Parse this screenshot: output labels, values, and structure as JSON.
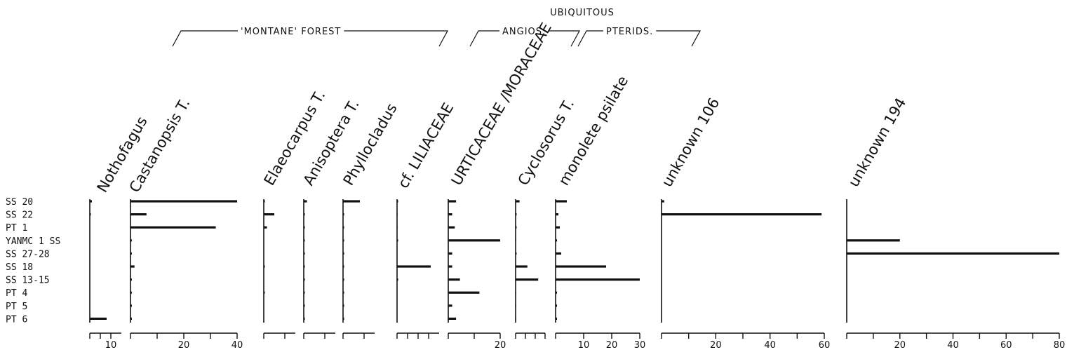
{
  "chart_data": {
    "type": "bar",
    "orientation": "horizontal",
    "samples": [
      "SS 20",
      "SS 22",
      "PT 1",
      "YANMC 1 SS",
      "SS 27-28",
      "SS 18",
      "SS 13-15",
      "PT 4",
      "PT 5",
      "PT 6"
    ],
    "groups": [
      {
        "label": "'MONTANE' FOREST"
      },
      {
        "label": "ANGIOS."
      },
      {
        "label": "PTERIDS."
      },
      {
        "label": "UBIQUITOUS"
      }
    ],
    "series": [
      {
        "name": "Nothofagus",
        "axis": {
          "min": 0,
          "max": 15,
          "ticks": [
            0,
            5,
            10
          ],
          "tick_labels": [
            "",
            "",
            "10"
          ]
        },
        "values": [
          1,
          0.5,
          0,
          0,
          0,
          0,
          0,
          0,
          0,
          8
        ]
      },
      {
        "name": "Castanopsis T.",
        "axis": {
          "min": 0,
          "max": 40,
          "ticks": [
            0,
            10,
            20,
            30,
            40
          ],
          "tick_labels": [
            "",
            "",
            "20",
            "",
            "40"
          ]
        },
        "values": [
          40,
          6,
          32,
          0.5,
          0.5,
          1.5,
          0.5,
          0.5,
          0.5,
          0.5
        ]
      },
      {
        "name": "Elaeocarpus T.",
        "axis": {
          "min": 0,
          "max": 15,
          "ticks": [
            0,
            10
          ],
          "tick_labels": [
            "",
            ""
          ]
        },
        "values": [
          0.5,
          5,
          1.5,
          0,
          0,
          0.5,
          0,
          0.5,
          0,
          0
        ]
      },
      {
        "name": "Anisoptera T.",
        "axis": {
          "min": 0,
          "max": 15,
          "ticks": [
            0,
            10
          ],
          "tick_labels": [
            "",
            ""
          ]
        },
        "values": [
          1.5,
          0.5,
          0.5,
          0.5,
          0.5,
          0.5,
          0.5,
          0.5,
          0.5,
          0.5
        ]
      },
      {
        "name": "Phyllocladus",
        "axis": {
          "min": 0,
          "max": 15,
          "ticks": [
            0,
            10
          ],
          "tick_labels": [
            "",
            ""
          ]
        },
        "values": [
          8,
          0.5,
          0.5,
          0.5,
          0.5,
          0.5,
          0.5,
          0.5,
          0.5,
          0.5
        ]
      },
      {
        "name": "cf. LILIACEAE",
        "axis": {
          "min": 0,
          "max": 40,
          "ticks": [
            0,
            10,
            20,
            30
          ],
          "tick_labels": [
            "",
            "",
            "",
            ""
          ]
        },
        "values": [
          1,
          0.5,
          0.5,
          1,
          0,
          32,
          1,
          0,
          0,
          0
        ]
      },
      {
        "name": "URTICACEAE /MORACEAE",
        "axis": {
          "min": 0,
          "max": 20,
          "ticks": [
            0,
            10,
            20
          ],
          "tick_labels": [
            "",
            "",
            "20"
          ]
        },
        "values": [
          3,
          1.5,
          2.5,
          20,
          1.5,
          1.5,
          4.5,
          12,
          1.5,
          3
        ]
      },
      {
        "name": "Cyclosorus T.",
        "axis": {
          "min": 0,
          "max": 30,
          "ticks": [
            0,
            10,
            20,
            30
          ],
          "tick_labels": [
            "",
            "",
            "",
            ""
          ]
        },
        "values": [
          4,
          1,
          1,
          0.5,
          1,
          12,
          23,
          0.5,
          0.5,
          0.5
        ]
      },
      {
        "name": "monolete psilate",
        "axis": {
          "min": 0,
          "max": 30,
          "ticks": [
            0,
            10,
            20,
            30
          ],
          "tick_labels": [
            "",
            "10",
            "20",
            "30"
          ]
        },
        "values": [
          4,
          1,
          1.5,
          0.5,
          2,
          18,
          30,
          0.5,
          0.5,
          0.5
        ]
      },
      {
        "name": "unknown 106",
        "axis": {
          "min": 0,
          "max": 60,
          "ticks": [
            0,
            10,
            20,
            30,
            40,
            50,
            60
          ],
          "tick_labels": [
            "",
            "",
            "20",
            "",
            "40",
            "",
            "60"
          ]
        },
        "values": [
          1,
          59,
          0,
          0,
          0,
          0,
          0,
          0,
          0,
          0
        ]
      },
      {
        "name": "unknown 194",
        "axis": {
          "min": 0,
          "max": 80,
          "ticks": [
            0,
            10,
            20,
            30,
            40,
            50,
            60,
            70,
            80
          ],
          "tick_labels": [
            "",
            "",
            "20",
            "",
            "40",
            "",
            "60",
            "",
            "80"
          ]
        },
        "values": [
          0,
          0,
          0,
          20,
          80,
          0,
          0,
          0,
          0,
          0
        ]
      }
    ]
  }
}
